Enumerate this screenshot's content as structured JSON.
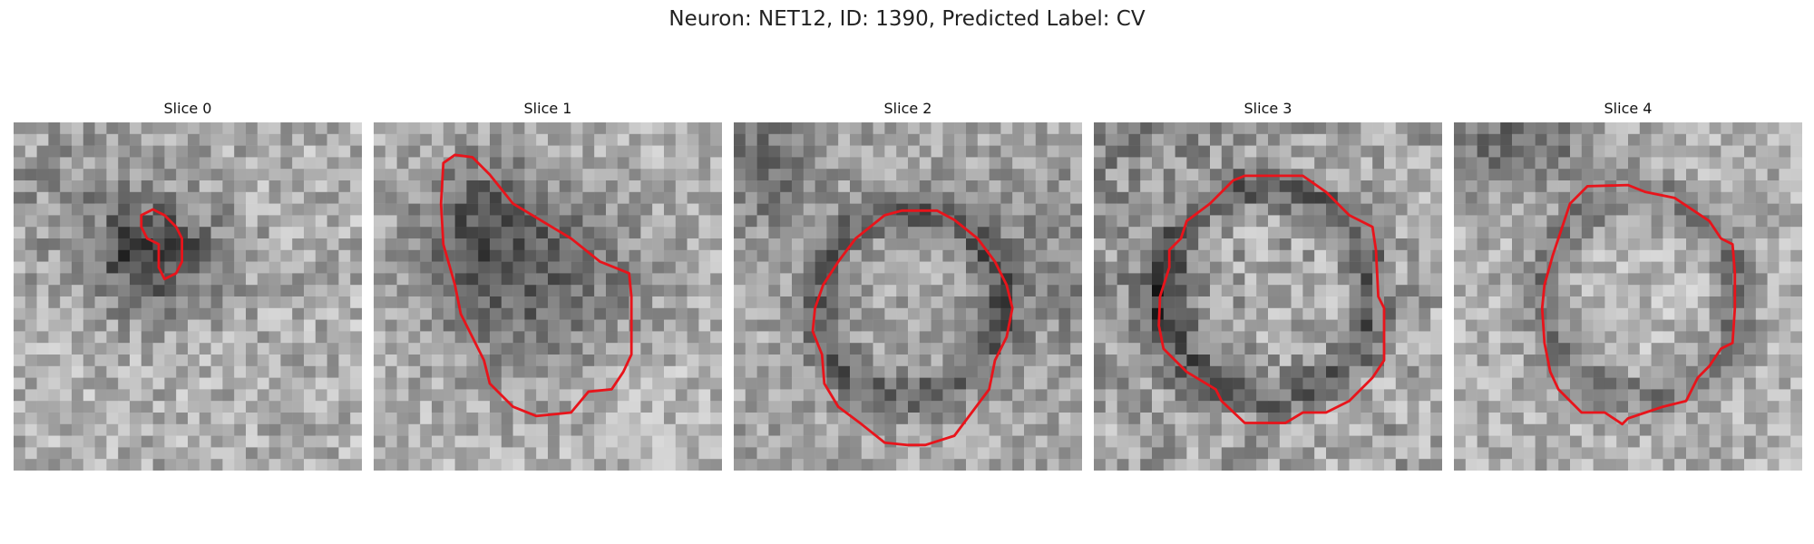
{
  "figure": {
    "title": "Neuron: NET12, ID: 1390, Predicted Label: CV"
  },
  "panels": [
    {
      "title": "Slice 0"
    },
    {
      "title": "Slice 1"
    },
    {
      "title": "Slice 2"
    },
    {
      "title": "Slice 3"
    },
    {
      "title": "Slice 4"
    }
  ],
  "colors": {
    "contour": "#e8141b",
    "background": "#ffffff"
  }
}
